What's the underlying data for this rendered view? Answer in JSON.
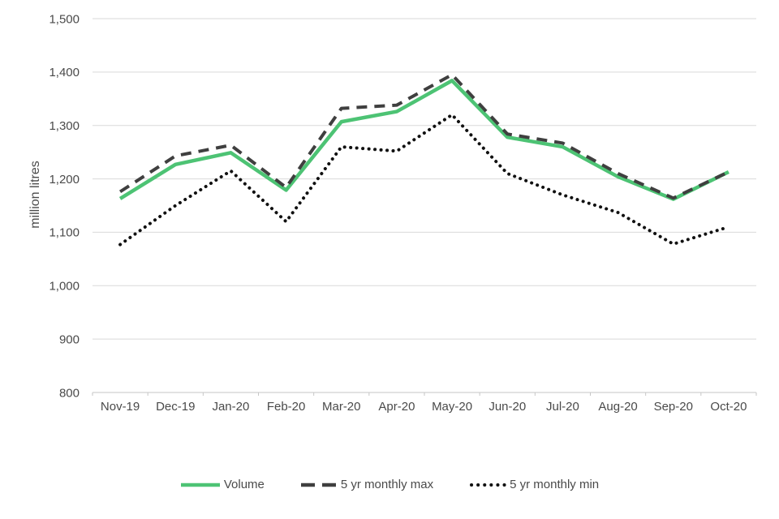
{
  "chart_data": {
    "type": "line",
    "title": "",
    "xlabel": "",
    "ylabel": "million litres",
    "ylim": [
      800,
      1500
    ],
    "y_tick_values": [
      800,
      900,
      1000,
      1100,
      1200,
      1300,
      1400,
      1500
    ],
    "y_tick_labels": [
      "800",
      "900",
      "1,000",
      "1,100",
      "1,200",
      "1,300",
      "1,400",
      "1,500"
    ],
    "categories": [
      "Nov-19",
      "Dec-19",
      "Jan-20",
      "Feb-20",
      "Mar-20",
      "Apr-20",
      "May-20",
      "Jun-20",
      "Jul-20",
      "Aug-20",
      "Sep-20",
      "Oct-20"
    ],
    "series": [
      {
        "name": "Volume",
        "style": "solid",
        "color": "#4dc374",
        "values": [
          1163,
          1227,
          1249,
          1179,
          1307,
          1326,
          1384,
          1278,
          1260,
          1204,
          1162,
          1213
        ]
      },
      {
        "name": "5 yr monthly max",
        "style": "dashed",
        "color": "#3f3f3f",
        "values": [
          1176,
          1243,
          1263,
          1184,
          1332,
          1338,
          1395,
          1284,
          1267,
          1210,
          1164,
          1213
        ]
      },
      {
        "name": "5 yr monthly min",
        "style": "dotted",
        "color": "#111111",
        "values": [
          1077,
          1150,
          1215,
          1120,
          1260,
          1252,
          1320,
          1210,
          1170,
          1137,
          1078,
          1110
        ]
      }
    ],
    "legend_position": "bottom",
    "grid": "horizontal",
    "gridline_color": "#d9d9d9",
    "axis_line_color": "#c6c6c6",
    "axis_text_color": "#4a4a4a"
  }
}
